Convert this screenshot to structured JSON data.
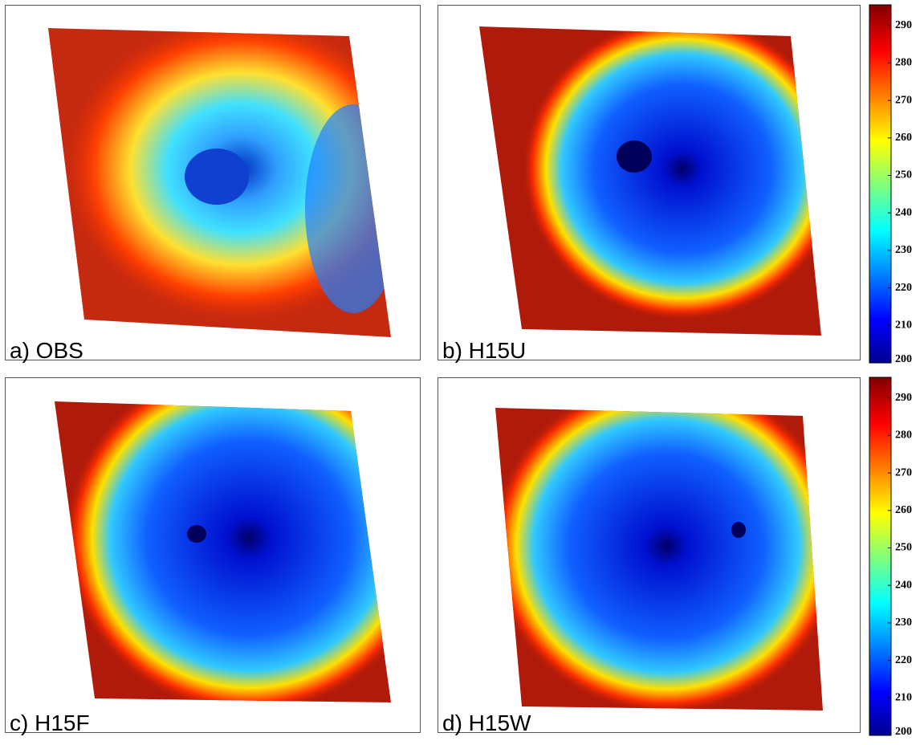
{
  "panels": [
    {
      "label": "a) OBS"
    },
    {
      "label": "b) H15U"
    },
    {
      "label": "c) H15F"
    },
    {
      "label": "d) H15W"
    }
  ],
  "colorbars": [
    {
      "lim": [
        200,
        295.5
      ],
      "ticks": [
        200,
        210,
        220,
        230,
        240,
        250,
        260,
        270,
        280,
        290
      ]
    },
    {
      "lim": [
        200,
        295.5
      ],
      "ticks": [
        200,
        210,
        220,
        230,
        240,
        250,
        260,
        270,
        280,
        290
      ]
    }
  ]
}
